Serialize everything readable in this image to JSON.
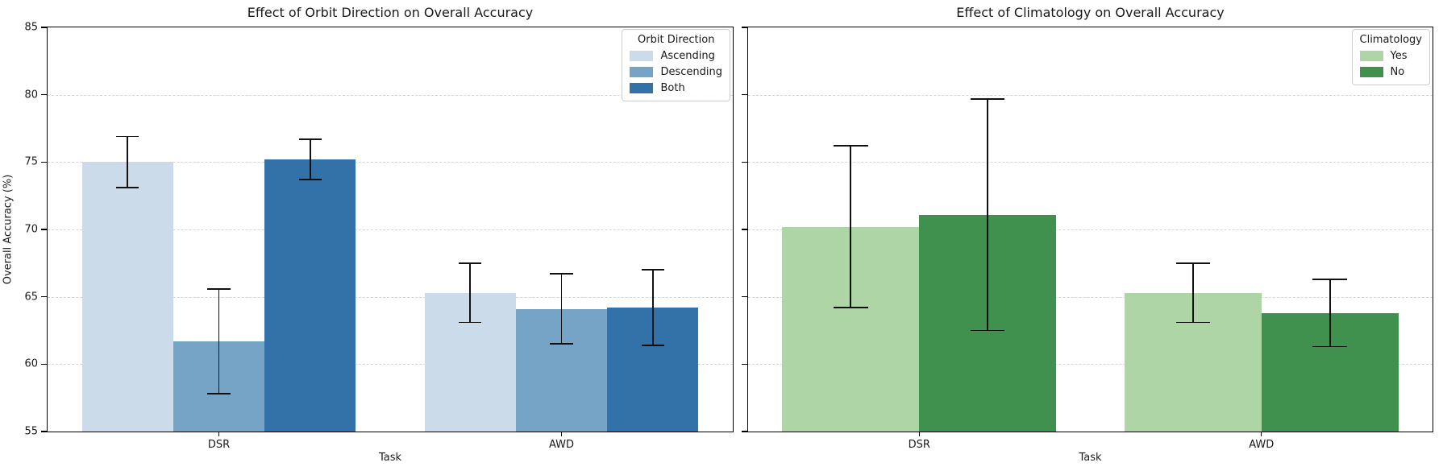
{
  "figure": {
    "background": "#ffffff",
    "text_color": "#1a1a1a"
  },
  "chart_data": [
    {
      "type": "bar",
      "title": "Effect of Orbit Direction on Overall Accuracy",
      "xlabel": "Task",
      "ylabel": "Overall Accuracy (%)",
      "categories": [
        "DSR",
        "AWD"
      ],
      "ylim": [
        55,
        85
      ],
      "yticks": [
        55,
        60,
        65,
        70,
        75,
        80,
        85
      ],
      "show_ytick_labels": true,
      "grid": "horizontal-dashed",
      "legend": {
        "title": "Orbit Direction",
        "position": "top-right"
      },
      "error_bars": true,
      "series": [
        {
          "name": "Ascending",
          "color": "#cbdbea",
          "values": [
            75.0,
            65.3
          ],
          "errors": [
            1.9,
            2.2
          ]
        },
        {
          "name": "Descending",
          "color": "#75a4c7",
          "values": [
            61.7,
            64.1
          ],
          "errors": [
            3.9,
            2.6
          ]
        },
        {
          "name": "Both",
          "color": "#3372a8",
          "values": [
            75.2,
            64.2
          ],
          "errors": [
            1.5,
            2.8
          ]
        }
      ]
    },
    {
      "type": "bar",
      "title": "Effect of Climatology on Overall Accuracy",
      "xlabel": "Task",
      "categories": [
        "DSR",
        "AWD"
      ],
      "ylim": [
        55,
        85
      ],
      "yticks": [
        55,
        60,
        65,
        70,
        75,
        80,
        85
      ],
      "show_ytick_labels": false,
      "grid": "horizontal-dashed",
      "legend": {
        "title": "Climatology",
        "position": "top-right"
      },
      "error_bars": true,
      "series": [
        {
          "name": "Yes",
          "color": "#aed5a6",
          "values": [
            70.2,
            65.3
          ],
          "errors": [
            6.0,
            2.2
          ]
        },
        {
          "name": "No",
          "color": "#41914e",
          "values": [
            71.1,
            63.8
          ],
          "errors": [
            8.6,
            2.5
          ]
        }
      ]
    }
  ]
}
